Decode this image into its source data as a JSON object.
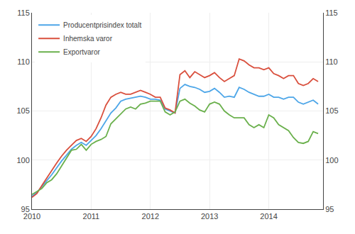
{
  "chart_data": {
    "type": "line",
    "x": [
      2010,
      2010.083333,
      2010.166667,
      2010.25,
      2010.333333,
      2010.416667,
      2010.5,
      2010.583333,
      2010.666667,
      2010.75,
      2010.833333,
      2010.916667,
      2011,
      2011.083333,
      2011.166667,
      2011.25,
      2011.333333,
      2011.416667,
      2011.5,
      2011.583333,
      2011.666667,
      2011.75,
      2011.833333,
      2011.916667,
      2012,
      2012.083333,
      2012.166667,
      2012.25,
      2012.333333,
      2012.416667,
      2012.5,
      2012.583333,
      2012.666667,
      2012.75,
      2012.833333,
      2012.916667,
      2013,
      2013.083333,
      2013.166667,
      2013.25,
      2013.333333,
      2013.416667,
      2013.5,
      2013.583333,
      2013.666667,
      2013.75,
      2013.833333,
      2013.916667,
      2014,
      2014.083333,
      2014.166667,
      2014.25,
      2014.333333,
      2014.416667,
      2014.5,
      2014.583333,
      2014.666667,
      2014.75,
      2014.833333
    ],
    "series": [
      {
        "name": "Producentprisindex totalt",
        "color": "#4da6e8",
        "values": [
          96.3,
          96.7,
          97.3,
          97.9,
          98.5,
          99.2,
          99.9,
          100.5,
          101.1,
          101.5,
          101.8,
          101.5,
          102.0,
          102.5,
          103.2,
          104.0,
          104.8,
          105.3,
          106.0,
          106.2,
          106.3,
          106.4,
          106.5,
          106.4,
          106.2,
          106.2,
          106.1,
          105.2,
          105.0,
          104.8,
          107.3,
          107.7,
          107.5,
          107.4,
          107.2,
          106.9,
          107.0,
          107.3,
          106.9,
          106.4,
          106.5,
          106.4,
          107.4,
          107.2,
          106.9,
          106.7,
          106.5,
          106.5,
          106.7,
          106.4,
          106.4,
          106.2,
          106.4,
          106.4,
          105.9,
          105.7,
          105.9,
          106.1,
          105.7
        ]
      },
      {
        "name": "Inhemska varor",
        "color": "#d94f3d",
        "values": [
          96.2,
          96.6,
          97.4,
          98.2,
          99.0,
          99.7,
          100.4,
          101.0,
          101.5,
          102.0,
          102.2,
          101.9,
          102.4,
          103.2,
          104.3,
          105.6,
          106.4,
          106.7,
          106.9,
          106.7,
          106.7,
          106.9,
          107.1,
          106.9,
          106.7,
          106.4,
          106.4,
          105.3,
          105.1,
          104.8,
          108.7,
          109.1,
          108.4,
          109.0,
          108.7,
          108.4,
          108.6,
          108.9,
          108.4,
          108.0,
          108.3,
          108.6,
          110.3,
          110.1,
          109.7,
          109.4,
          109.4,
          109.2,
          109.4,
          108.8,
          108.6,
          108.3,
          108.6,
          108.6,
          107.8,
          107.6,
          107.8,
          108.3,
          108.0
        ]
      },
      {
        "name": "Exportvaror",
        "color": "#6ab04c",
        "values": [
          96.5,
          96.8,
          97.1,
          97.7,
          98.0,
          98.6,
          99.4,
          100.2,
          101.0,
          101.1,
          101.6,
          101.0,
          101.6,
          101.9,
          102.1,
          102.4,
          103.7,
          104.2,
          104.7,
          105.2,
          105.4,
          105.2,
          105.7,
          105.8,
          106.0,
          106.0,
          106.0,
          104.9,
          104.6,
          104.9,
          106.0,
          106.2,
          105.8,
          105.5,
          105.1,
          104.9,
          105.7,
          105.9,
          105.7,
          105.0,
          104.6,
          104.3,
          104.3,
          104.3,
          103.6,
          103.3,
          103.6,
          103.3,
          104.6,
          104.3,
          103.6,
          103.3,
          103.0,
          102.3,
          101.8,
          101.7,
          101.9,
          102.9,
          102.7
        ]
      }
    ],
    "xlim": [
      2010,
      2014.916667
    ],
    "xticks": [
      2010,
      2011,
      2012,
      2013,
      2014
    ],
    "ylim": [
      95,
      115
    ],
    "yticks": [
      95,
      100,
      105,
      110,
      115
    ],
    "y2lim": [
      95,
      115
    ],
    "y2ticks": [
      95,
      100,
      105,
      110,
      115
    ],
    "grid": true,
    "legend": "upper left"
  }
}
